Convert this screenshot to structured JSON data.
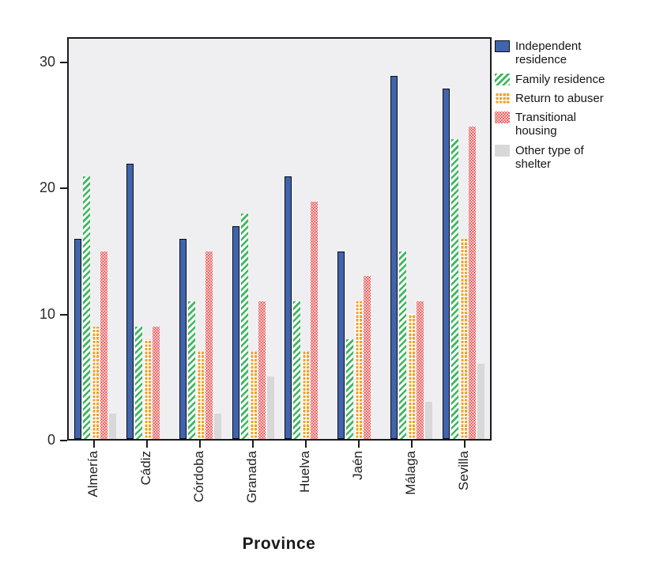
{
  "figure": {
    "xaxis_title": "Province"
  },
  "colors": {
    "plot_background": "#efeff1",
    "axis": "#1a1a1c",
    "tick_label": "#2b2b2b",
    "independent_residence": "#4064ad",
    "family_residence": "#3cb85c",
    "return_to_abuser": "#f4a125",
    "transitional_housing": "#ec3b3b",
    "other_shelter": "#d8d8d8"
  },
  "chart_data": {
    "type": "bar",
    "title": "",
    "xlabel": "Province",
    "ylabel": "",
    "categories": [
      "Almería",
      "Cádiz",
      "Córdoba",
      "Granada",
      "Huelva",
      "Jaén",
      "Málaga",
      "Sevilla"
    ],
    "series": [
      {
        "name": "Independent residence",
        "pattern": "solid",
        "color": "#4064ad",
        "border": "#0c0c14",
        "values": [
          16,
          22,
          16,
          17,
          21,
          15,
          29,
          28
        ]
      },
      {
        "name": "Family residence",
        "pattern": "diagonal-stripes",
        "color": "#3cb85c",
        "values": [
          21,
          9,
          11,
          18,
          11,
          8,
          15,
          24
        ]
      },
      {
        "name": "Return to abuser",
        "pattern": "plus-grid",
        "color": "#f4a125",
        "values": [
          9,
          8,
          7,
          7,
          7,
          11,
          10,
          16
        ]
      },
      {
        "name": "Transitional housing",
        "pattern": "dots",
        "color": "#ec3b3b",
        "values": [
          15,
          9,
          15,
          11,
          19,
          13,
          11,
          25
        ]
      },
      {
        "name": "Other type of shelter",
        "pattern": "solid",
        "color": "#d8d8d8",
        "values": [
          2,
          0,
          2,
          5,
          0,
          0,
          3,
          6
        ]
      }
    ],
    "yticks": [
      0,
      10,
      20,
      30
    ],
    "ylim": [
      0,
      32
    ],
    "grid": false,
    "legend_position": "top-right-outside"
  }
}
